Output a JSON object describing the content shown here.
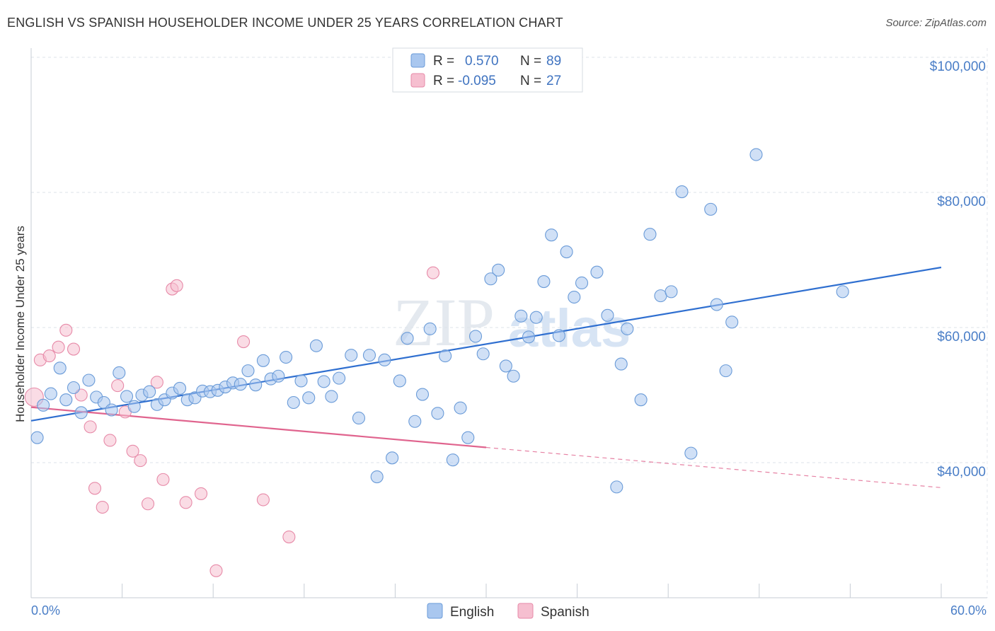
{
  "title": "ENGLISH VS SPANISH HOUSEHOLDER INCOME UNDER 25 YEARS CORRELATION CHART",
  "source": "Source: ZipAtlas.com",
  "watermark": {
    "zip": "ZIP",
    "atlas": "atlas"
  },
  "colors": {
    "english_fill": "#a9c7ef",
    "english_stroke": "#6a9bd8",
    "english_line": "#2f6fd0",
    "spanish_fill": "#f6bfd0",
    "spanish_stroke": "#e78aa8",
    "spanish_line": "#e0648e",
    "grid": "#dde3ea",
    "tick_text": "#4a7ec7"
  },
  "legend_top": [
    {
      "series": "English",
      "r_label": "R =",
      "r_value": "0.570",
      "n_label": "N =",
      "n_value": "89"
    },
    {
      "series": "Spanish",
      "r_label": "R =",
      "r_value": "-0.095",
      "n_label": "N =",
      "n_value": "27"
    }
  ],
  "chart_data": {
    "type": "scatter",
    "title": "ENGLISH VS SPANISH HOUSEHOLDER INCOME UNDER 25 YEARS CORRELATION CHART",
    "xlabel": "",
    "ylabel": "Householder Income Under 25 years",
    "xlim": [
      0,
      60
    ],
    "ylim": [
      20000,
      105000
    ],
    "x_tick_labels": [
      "0.0%",
      "60.0%"
    ],
    "y_ticks": [
      40000,
      60000,
      80000,
      100000
    ],
    "y_tick_labels": [
      "$40,000",
      "$60,000",
      "$80,000",
      "$100,000"
    ],
    "grid": true,
    "legend_placement": "bottom-center",
    "series": [
      {
        "name": "English",
        "r": 0.57,
        "n": 89,
        "trend": {
          "x": [
            0,
            60
          ],
          "y": [
            46200,
            68900
          ],
          "dashed_from": null
        },
        "points": [
          [
            0.4,
            43700
          ],
          [
            0.8,
            48500
          ],
          [
            1.3,
            50200
          ],
          [
            1.9,
            54000
          ],
          [
            2.3,
            49300
          ],
          [
            2.8,
            51100
          ],
          [
            3.3,
            47400
          ],
          [
            3.8,
            52200
          ],
          [
            4.3,
            49700
          ],
          [
            4.8,
            48900
          ],
          [
            5.3,
            47800
          ],
          [
            5.8,
            53300
          ],
          [
            6.3,
            49800
          ],
          [
            6.8,
            48300
          ],
          [
            7.3,
            50000
          ],
          [
            7.8,
            50500
          ],
          [
            8.3,
            48600
          ],
          [
            8.8,
            49300
          ],
          [
            9.3,
            50300
          ],
          [
            9.8,
            51000
          ],
          [
            10.3,
            49300
          ],
          [
            10.8,
            49600
          ],
          [
            11.3,
            50600
          ],
          [
            11.8,
            50500
          ],
          [
            12.3,
            50700
          ],
          [
            12.8,
            51200
          ],
          [
            13.3,
            51800
          ],
          [
            13.8,
            51600
          ],
          [
            14.3,
            53600
          ],
          [
            14.8,
            51500
          ],
          [
            15.3,
            55100
          ],
          [
            15.8,
            52400
          ],
          [
            16.3,
            52800
          ],
          [
            16.8,
            55600
          ],
          [
            17.3,
            48900
          ],
          [
            17.8,
            52100
          ],
          [
            18.3,
            49600
          ],
          [
            18.8,
            57300
          ],
          [
            19.3,
            52000
          ],
          [
            19.8,
            49800
          ],
          [
            20.3,
            52500
          ],
          [
            21.1,
            55900
          ],
          [
            21.6,
            46600
          ],
          [
            22.3,
            55900
          ],
          [
            22.8,
            37900
          ],
          [
            23.3,
            55200
          ],
          [
            23.8,
            40700
          ],
          [
            24.3,
            52100
          ],
          [
            24.8,
            58400
          ],
          [
            25.3,
            46100
          ],
          [
            25.8,
            50100
          ],
          [
            26.3,
            59800
          ],
          [
            26.8,
            47300
          ],
          [
            27.3,
            55800
          ],
          [
            27.8,
            40400
          ],
          [
            28.3,
            48100
          ],
          [
            28.8,
            43700
          ],
          [
            29.3,
            58700
          ],
          [
            29.8,
            56100
          ],
          [
            30.3,
            67200
          ],
          [
            30.8,
            68500
          ],
          [
            31.3,
            54300
          ],
          [
            31.8,
            52800
          ],
          [
            32.3,
            61700
          ],
          [
            32.8,
            58600
          ],
          [
            33.3,
            61500
          ],
          [
            33.8,
            66800
          ],
          [
            34.3,
            73700
          ],
          [
            34.8,
            58800
          ],
          [
            35.3,
            71200
          ],
          [
            35.8,
            64500
          ],
          [
            36.3,
            66600
          ],
          [
            37.3,
            68200
          ],
          [
            38.0,
            61800
          ],
          [
            38.6,
            36400
          ],
          [
            38.9,
            54600
          ],
          [
            39.3,
            59800
          ],
          [
            40.2,
            49300
          ],
          [
            40.8,
            73800
          ],
          [
            41.5,
            64700
          ],
          [
            42.2,
            65300
          ],
          [
            42.9,
            80100
          ],
          [
            43.5,
            41400
          ],
          [
            44.8,
            77500
          ],
          [
            45.2,
            63400
          ],
          [
            45.8,
            53600
          ],
          [
            46.2,
            60800
          ],
          [
            47.8,
            85600
          ],
          [
            53.5,
            65300
          ]
        ]
      },
      {
        "name": "Spanish",
        "r": -0.095,
        "n": 27,
        "trend": {
          "x": [
            0,
            60
          ],
          "y": [
            48200,
            36300
          ],
          "dashed_from": 30
        },
        "points": [
          [
            0.2,
            49700
          ],
          [
            0.6,
            55200
          ],
          [
            1.2,
            55800
          ],
          [
            1.8,
            57100
          ],
          [
            2.3,
            59600
          ],
          [
            2.8,
            56800
          ],
          [
            3.3,
            50000
          ],
          [
            3.9,
            45300
          ],
          [
            4.2,
            36200
          ],
          [
            4.7,
            33400
          ],
          [
            5.2,
            43300
          ],
          [
            5.7,
            51400
          ],
          [
            6.2,
            47500
          ],
          [
            6.7,
            41700
          ],
          [
            7.2,
            40300
          ],
          [
            7.7,
            33900
          ],
          [
            8.3,
            51900
          ],
          [
            8.7,
            37500
          ],
          [
            9.3,
            65700
          ],
          [
            9.6,
            66200
          ],
          [
            10.2,
            34100
          ],
          [
            11.2,
            35400
          ],
          [
            12.2,
            24000
          ],
          [
            14.0,
            57900
          ],
          [
            15.3,
            34500
          ],
          [
            17.0,
            29000
          ],
          [
            26.5,
            68100
          ]
        ]
      }
    ]
  }
}
